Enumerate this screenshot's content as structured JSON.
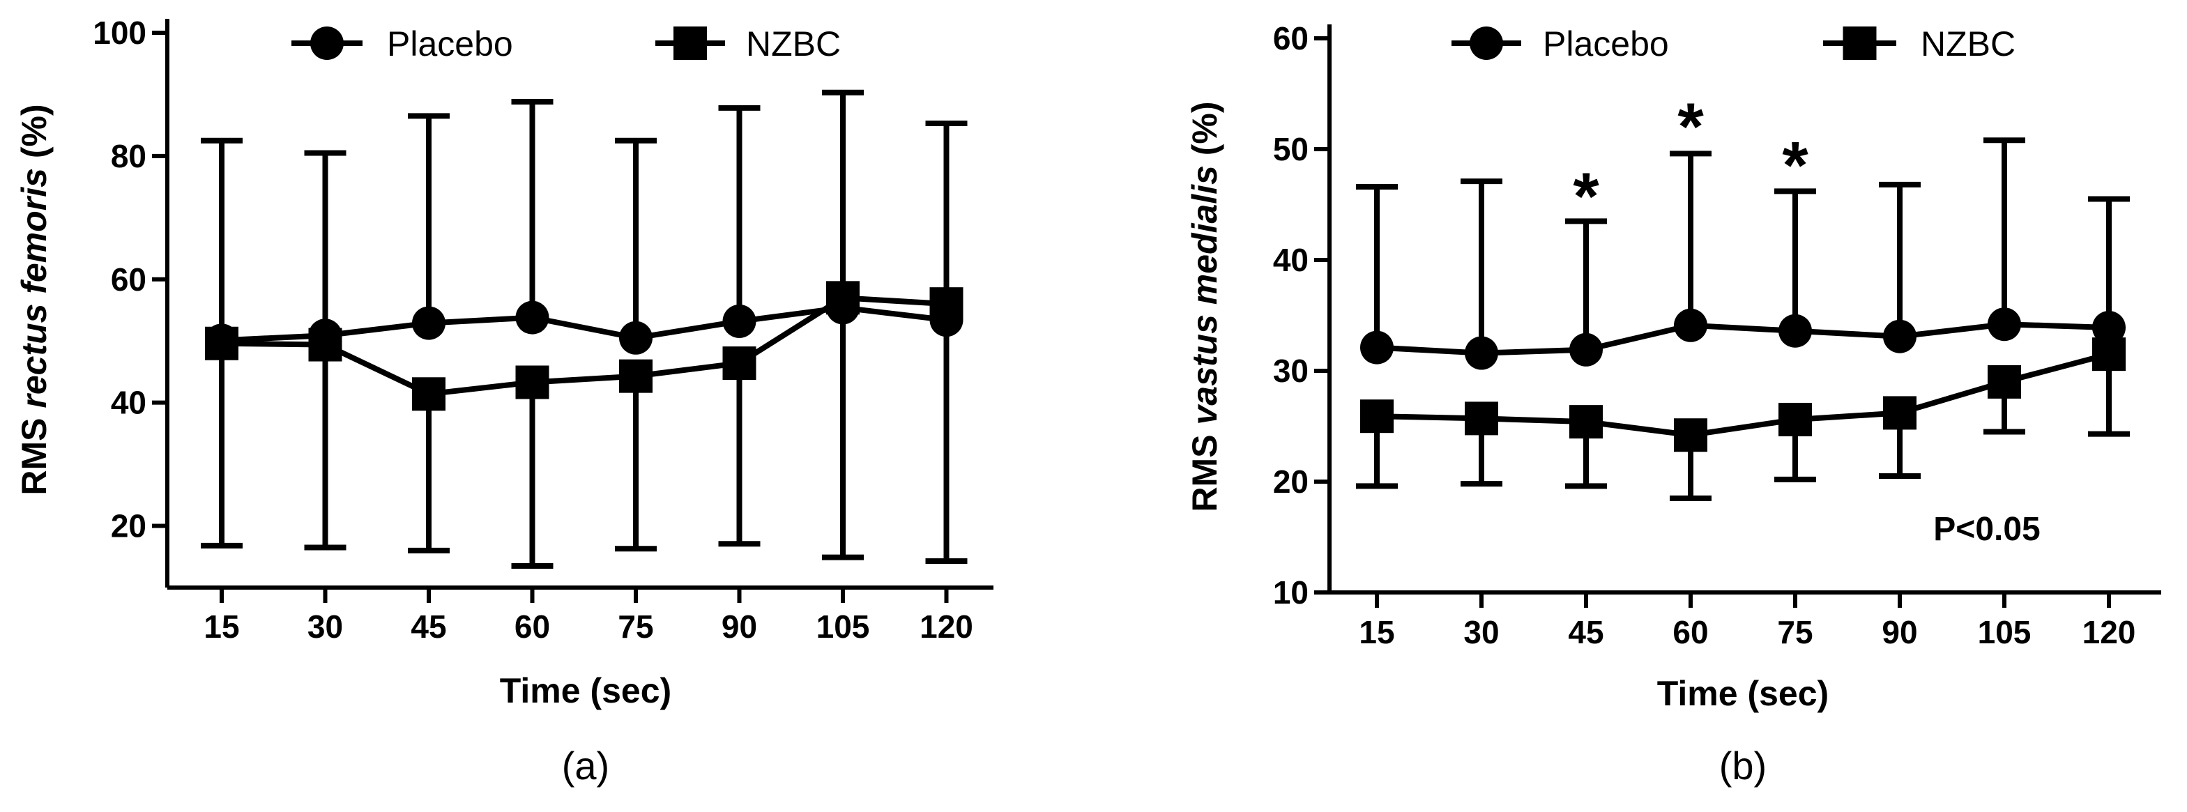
{
  "chart_data": [
    {
      "type": "line",
      "panel_label": "(a)",
      "xlabel": "Time (sec)",
      "ylabel_prefix": "RMS ",
      "ylabel_italic": "rectus femoris",
      "ylabel_suffix": " (%)",
      "ylim": [
        10,
        100
      ],
      "yticks": [
        20,
        40,
        60,
        80,
        100
      ],
      "categories": [
        "15",
        "30",
        "45",
        "60",
        "75",
        "90",
        "105",
        "120"
      ],
      "legend": [
        "Placebo",
        "NZBC"
      ],
      "series": [
        {
          "name": "Placebo",
          "marker": "circle",
          "values": [
            50.1,
            50.9,
            52.9,
            53.8,
            50.5,
            53.2,
            55.4,
            53.4
          ],
          "error_upper": [
            82.5,
            80.5,
            86.5,
            88.8,
            82.5,
            87.8,
            90.3,
            85.3
          ],
          "error_lower": null
        },
        {
          "name": "NZBC",
          "marker": "square",
          "values": [
            49.6,
            49.4,
            41.4,
            43.3,
            44.3,
            46.4,
            57.0,
            56.0
          ],
          "error_upper": null,
          "error_lower": [
            16.8,
            16.5,
            16.0,
            13.5,
            16.3,
            17.1,
            14.9,
            14.3
          ]
        }
      ],
      "annotations": []
    },
    {
      "type": "line",
      "panel_label": "(b)",
      "xlabel": "Time (sec)",
      "ylabel_prefix": "RMS ",
      "ylabel_italic": "vastus medialis",
      "ylabel_suffix": " (%)",
      "ylim": [
        10,
        60
      ],
      "yticks": [
        10,
        20,
        30,
        40,
        50,
        60
      ],
      "categories": [
        "15",
        "30",
        "45",
        "60",
        "75",
        "90",
        "105",
        "120"
      ],
      "legend": [
        "Placebo",
        "NZBC"
      ],
      "series": [
        {
          "name": "Placebo",
          "marker": "circle",
          "values": [
            32.1,
            31.6,
            31.9,
            34.1,
            33.6,
            33.1,
            34.2,
            33.9
          ],
          "error_upper": [
            46.6,
            47.1,
            43.5,
            49.6,
            46.2,
            46.8,
            50.8,
            45.5
          ],
          "error_lower": null
        },
        {
          "name": "NZBC",
          "marker": "square",
          "values": [
            25.9,
            25.7,
            25.4,
            24.2,
            25.6,
            26.2,
            29.0,
            31.5
          ],
          "error_upper": null,
          "error_lower": [
            19.6,
            19.8,
            19.6,
            18.5,
            20.2,
            20.5,
            24.5,
            24.3
          ]
        }
      ],
      "annotations": [
        {
          "text": "*",
          "category": "45",
          "value": 46.2
        },
        {
          "text": "*",
          "category": "60",
          "value": 52.5
        },
        {
          "text": "*",
          "category": "75",
          "value": 49.0
        }
      ],
      "pvalue_text": "P<0.05"
    }
  ]
}
